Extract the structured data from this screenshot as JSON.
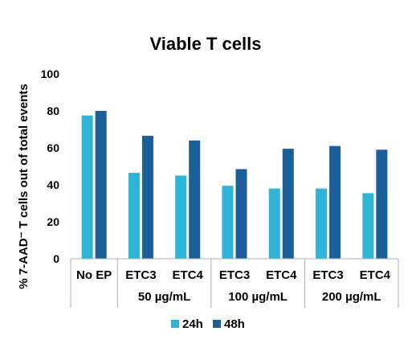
{
  "chart_data": {
    "type": "bar",
    "title": "Viable T cells",
    "ylabel": "% 7-AAD⁻ T cells out of total events",
    "xlabel": "",
    "ylim": [
      0,
      100
    ],
    "yticks": [
      0,
      20,
      40,
      60,
      80,
      100
    ],
    "categories": [
      "No EP",
      "ETC3",
      "ETC4",
      "ETC3",
      "ETC4",
      "ETC3",
      "ETC4"
    ],
    "groups": [
      {
        "label": "",
        "span": [
          0,
          0
        ]
      },
      {
        "label": "50 µg/mL",
        "span": [
          1,
          2
        ]
      },
      {
        "label": "100 µg/mL",
        "span": [
          3,
          4
        ]
      },
      {
        "label": "200 µg/mL",
        "span": [
          5,
          6
        ]
      }
    ],
    "series": [
      {
        "name": "24h",
        "color": "#2fb3d6",
        "values": [
          77.5,
          46.5,
          45,
          39.5,
          38,
          38,
          35.5
        ]
      },
      {
        "name": "48h",
        "color": "#1b5f9a",
        "values": [
          80,
          66.5,
          64,
          48.5,
          59.5,
          61,
          59
        ]
      }
    ],
    "grid": false,
    "legend_position": "bottom"
  }
}
